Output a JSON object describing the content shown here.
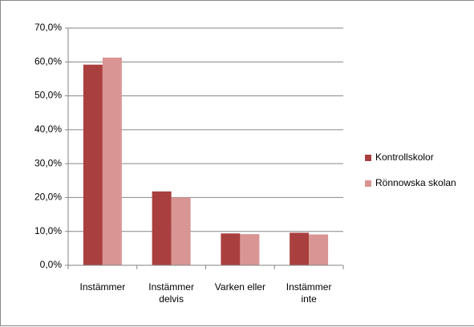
{
  "chart_data": {
    "type": "bar",
    "categories": [
      "Instämmer",
      "Instämmer delvis",
      "Varken eller",
      "Instämmer inte"
    ],
    "series": [
      {
        "name": "Kontrollskolor",
        "color": "#a9403f",
        "values": [
          59.2,
          21.8,
          9.4,
          9.6
        ]
      },
      {
        "name": "Rönnowska skolan",
        "color": "#d99594",
        "values": [
          61.3,
          20.0,
          9.2,
          9.1
        ]
      }
    ],
    "ylim": [
      0,
      70
    ],
    "yticks": [
      {
        "value": 0,
        "label": "0,0%"
      },
      {
        "value": 10,
        "label": "10,0%"
      },
      {
        "value": 20,
        "label": "20,0%"
      },
      {
        "value": 30,
        "label": "30,0%"
      },
      {
        "value": 40,
        "label": "40,0%"
      },
      {
        "value": 50,
        "label": "50,0%"
      },
      {
        "value": 60,
        "label": "60,0%"
      },
      {
        "value": 70,
        "label": "70,0%"
      }
    ],
    "grid": true,
    "legend": "right"
  }
}
